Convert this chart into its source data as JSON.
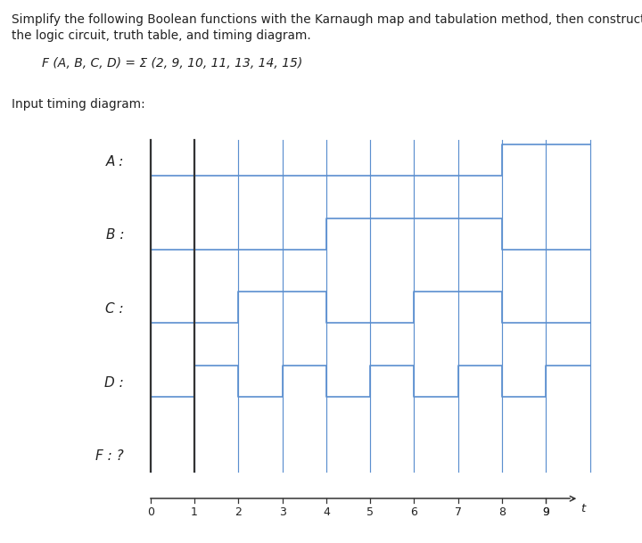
{
  "title_line1": "Simplify the following Boolean functions with the Karnaugh map and tabulation method, then construct",
  "title_line2": "the logic circuit, truth table, and timing diagram.",
  "function_label": "F (A, B, C, D) = Σ (2, 9, 10, 11, 13, 14, 15)",
  "input_label": "Input timing diagram:",
  "signals": [
    "A",
    "B",
    "C",
    "D",
    "F"
  ],
  "signal_values": {
    "A": [
      0,
      0,
      0,
      0,
      0,
      0,
      0,
      0,
      1,
      1
    ],
    "B": [
      0,
      0,
      0,
      0,
      1,
      1,
      1,
      1,
      0,
      0
    ],
    "C": [
      0,
      0,
      1,
      1,
      0,
      0,
      1,
      1,
      0,
      0
    ],
    "D": [
      0,
      1,
      0,
      1,
      0,
      1,
      0,
      1,
      0,
      1
    ]
  },
  "waveform_color": "#5b8fcf",
  "dark_color": "#333333",
  "text_color": "#222222",
  "background_color": "#ffffff",
  "fig_width": 7.2,
  "fig_height": 6.09,
  "dpi": 100
}
